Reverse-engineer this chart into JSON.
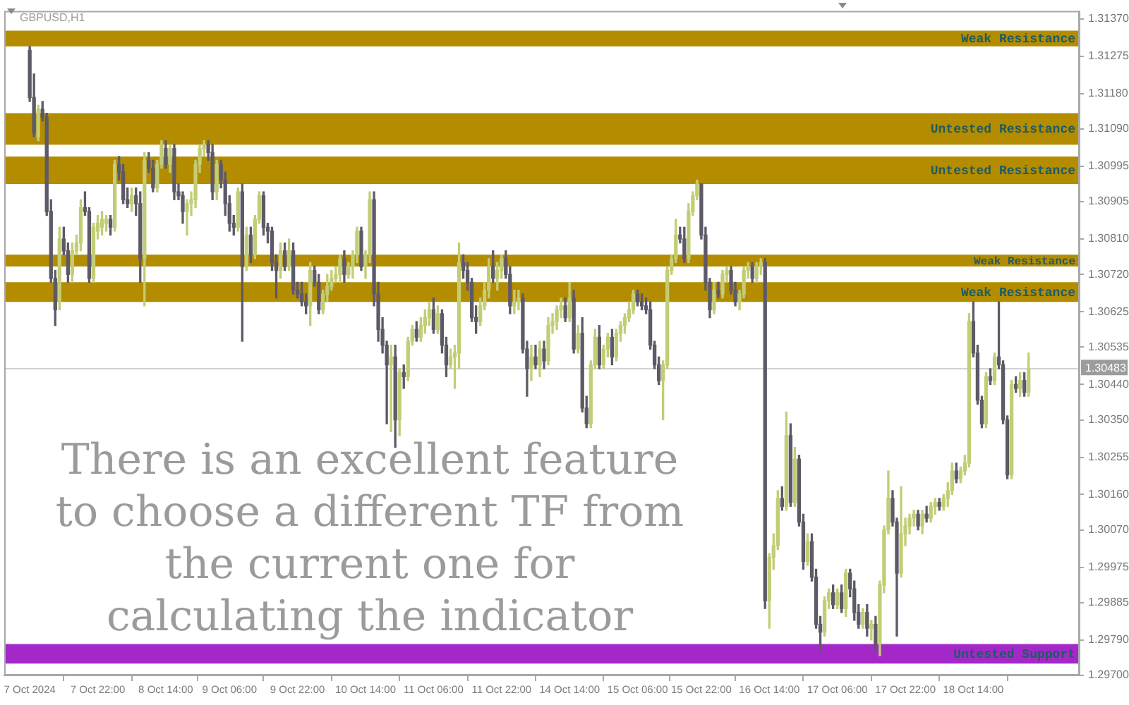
{
  "chart_data": {
    "type": "candlestick",
    "title": "GBPUSD,H1",
    "categories": [
      "7 Oct 2024",
      null,
      null,
      null,
      null,
      null,
      null,
      null,
      null,
      null,
      null,
      null,
      null,
      null,
      null,
      null,
      "7 Oct 22:00",
      null,
      null,
      null,
      null,
      null,
      null,
      null,
      null,
      null,
      null,
      null,
      null,
      null,
      null,
      null,
      "8 Oct 14:00",
      null,
      null,
      null,
      null,
      null,
      null,
      null,
      null,
      null,
      null,
      null,
      null,
      null,
      null,
      "9 Oct 06:00",
      null,
      null,
      null,
      null,
      null,
      null,
      null,
      null,
      null,
      null,
      null,
      null,
      null,
      null,
      null,
      "9 Oct 22:00",
      null,
      null,
      null,
      null,
      null,
      null,
      null,
      null,
      null,
      null,
      null,
      null,
      null,
      null,
      null,
      "10 Oct 14:00",
      null,
      null,
      null,
      null,
      null,
      null,
      null,
      null,
      null,
      null,
      null,
      null,
      null,
      null,
      null,
      "11 Oct 06:00",
      null,
      null,
      null,
      null,
      null,
      null,
      null,
      null,
      null,
      null,
      null,
      null,
      null,
      null,
      null,
      "11 Oct 22:00",
      null,
      null,
      null,
      null,
      null,
      null,
      null,
      null,
      null,
      null,
      null,
      null,
      null,
      null,
      null,
      "14 Oct 14:00",
      null,
      null,
      null,
      null,
      null,
      null,
      null,
      null,
      null,
      null,
      null,
      null,
      null,
      null,
      null,
      "15 Oct 06:00",
      null,
      null,
      null,
      null,
      null,
      null,
      null,
      null,
      null,
      null,
      null,
      null,
      null,
      null,
      "15 Oct 22:00",
      null,
      null,
      null,
      null,
      null,
      null,
      null,
      null,
      null,
      null,
      null,
      null,
      null,
      null,
      null,
      "16 Oct 14:00",
      null,
      null,
      null,
      null,
      null,
      null,
      null,
      null,
      null,
      null,
      null,
      null,
      null,
      null,
      null,
      "17 Oct 06:00",
      null,
      null,
      null,
      null,
      null,
      null,
      null,
      null,
      null,
      null,
      null,
      null,
      null,
      null,
      null,
      "17 Oct 22:00",
      null,
      null,
      null,
      null,
      null,
      null,
      null,
      null,
      null,
      null,
      null,
      null,
      null,
      null,
      null,
      "18 Oct 14:00",
      null,
      null,
      null,
      null,
      null,
      null,
      null,
      null,
      null,
      null,
      null,
      null,
      null
    ],
    "ohlc": [
      [
        1.3129,
        1.313,
        1.3116,
        1.3117
      ],
      [
        1.3117,
        1.3123,
        1.3107,
        1.3108
      ],
      [
        1.3107,
        1.3115,
        1.3106,
        1.3114
      ],
      [
        1.3114,
        1.3116,
        1.3111,
        1.3112
      ],
      [
        1.3112,
        1.3113,
        1.3087,
        1.3088
      ],
      [
        1.3088,
        1.3091,
        1.307,
        1.3071
      ],
      [
        1.3071,
        1.3073,
        1.3059,
        1.3063
      ],
      [
        1.3065,
        1.3084,
        1.3063,
        1.3081
      ],
      [
        1.3081,
        1.3084,
        1.3077,
        1.3078
      ],
      [
        1.3078,
        1.308,
        1.307,
        1.3072
      ],
      [
        1.3072,
        1.308,
        1.307,
        1.3078
      ],
      [
        1.3078,
        1.3082,
        1.3077,
        1.308
      ],
      [
        1.308,
        1.3091,
        1.3078,
        1.3089
      ],
      [
        1.3089,
        1.3093,
        1.3087,
        1.3088
      ],
      [
        1.3088,
        1.3089,
        1.307,
        1.3071
      ],
      [
        1.3071,
        1.3085,
        1.307,
        1.3084
      ],
      [
        1.3083,
        1.3087,
        1.3081,
        1.3085
      ],
      [
        1.3084,
        1.3088,
        1.3082,
        1.3086
      ],
      [
        1.3085,
        1.3087,
        1.3083,
        1.3086
      ],
      [
        1.3086,
        1.3087,
        1.3082,
        1.3084
      ],
      [
        1.3084,
        1.3101,
        1.3083,
        1.31
      ],
      [
        1.31,
        1.3102,
        1.3096,
        1.3098
      ],
      [
        1.3098,
        1.31,
        1.309,
        1.3091
      ],
      [
        1.3091,
        1.3094,
        1.3089,
        1.309
      ],
      [
        1.309,
        1.3094,
        1.3088,
        1.3092
      ],
      [
        1.3092,
        1.3094,
        1.3087,
        1.309
      ],
      [
        1.309,
        1.3093,
        1.307,
        1.3076
      ],
      [
        1.3076,
        1.3103,
        1.3064,
        1.3101
      ],
      [
        1.3101,
        1.3103,
        1.3098,
        1.3099
      ],
      [
        1.3099,
        1.3101,
        1.3093,
        1.3094
      ],
      [
        1.3094,
        1.3101,
        1.3093,
        1.31
      ],
      [
        1.31,
        1.3106,
        1.3099,
        1.3105
      ],
      [
        1.3104,
        1.3106,
        1.3099,
        1.31
      ],
      [
        1.31,
        1.3105,
        1.3098,
        1.3104
      ],
      [
        1.3104,
        1.3105,
        1.3091,
        1.3093
      ],
      [
        1.3093,
        1.3095,
        1.3091,
        1.3092
      ],
      [
        1.3092,
        1.3093,
        1.3085,
        1.3088
      ],
      [
        1.3088,
        1.3091,
        1.3082,
        1.309
      ],
      [
        1.309,
        1.3093,
        1.3087,
        1.3091
      ],
      [
        1.3091,
        1.3101,
        1.3089,
        1.31
      ],
      [
        1.31,
        1.3105,
        1.3098,
        1.3104
      ],
      [
        1.3104,
        1.3106,
        1.3102,
        1.3105
      ],
      [
        1.3105,
        1.3106,
        1.3101,
        1.3103
      ],
      [
        1.3103,
        1.3105,
        1.3091,
        1.3093
      ],
      [
        1.3093,
        1.3101,
        1.3091,
        1.31
      ],
      [
        1.31,
        1.3101,
        1.3094,
        1.3096
      ],
      [
        1.3096,
        1.3098,
        1.3087,
        1.309
      ],
      [
        1.309,
        1.3092,
        1.3083,
        1.3085
      ],
      [
        1.3085,
        1.3087,
        1.3082,
        1.3084
      ],
      [
        1.3084,
        1.3094,
        1.3083,
        1.3093
      ],
      [
        1.3093,
        1.3095,
        1.3055,
        1.3074
      ],
      [
        1.3074,
        1.3084,
        1.3073,
        1.3082
      ],
      [
        1.3082,
        1.3084,
        1.3075,
        1.3077
      ],
      [
        1.3077,
        1.3087,
        1.3076,
        1.3086
      ],
      [
        1.3086,
        1.3093,
        1.3085,
        1.3092
      ],
      [
        1.3092,
        1.3093,
        1.3082,
        1.3084
      ],
      [
        1.3084,
        1.3085,
        1.308,
        1.3083
      ],
      [
        1.3083,
        1.3084,
        1.3073,
        1.3075
      ],
      [
        1.3075,
        1.3077,
        1.3066,
        1.3073
      ],
      [
        1.3073,
        1.308,
        1.3071,
        1.3078
      ],
      [
        1.3078,
        1.308,
        1.3073,
        1.3074
      ],
      [
        1.3074,
        1.3081,
        1.3073,
        1.3078
      ],
      [
        1.3078,
        1.308,
        1.3067,
        1.3068
      ],
      [
        1.3068,
        1.307,
        1.3066,
        1.3067
      ],
      [
        1.3067,
        1.307,
        1.3064,
        1.3065
      ],
      [
        1.3065,
        1.3067,
        1.3062,
        1.3064
      ],
      [
        1.3064,
        1.3075,
        1.3059,
        1.3073
      ],
      [
        1.3073,
        1.3074,
        1.3069,
        1.307
      ],
      [
        1.307,
        1.3072,
        1.3062,
        1.3063
      ],
      [
        1.3063,
        1.3068,
        1.3062,
        1.3067
      ],
      [
        1.3067,
        1.3072,
        1.3065,
        1.3069
      ],
      [
        1.3069,
        1.3073,
        1.3068,
        1.3071
      ],
      [
        1.3071,
        1.3074,
        1.307,
        1.3072
      ],
      [
        1.3072,
        1.3077,
        1.307,
        1.3076
      ],
      [
        1.3076,
        1.3078,
        1.307,
        1.3072
      ],
      [
        1.3072,
        1.3075,
        1.3071,
        1.3074
      ],
      [
        1.3074,
        1.3078,
        1.3071,
        1.3077
      ],
      [
        1.3077,
        1.3084,
        1.3075,
        1.3083
      ],
      [
        1.3083,
        1.3084,
        1.3073,
        1.3074
      ],
      [
        1.3074,
        1.3078,
        1.3071,
        1.3077
      ],
      [
        1.3077,
        1.3093,
        1.3075,
        1.3091
      ],
      [
        1.3091,
        1.3093,
        1.3064,
        1.3067
      ],
      [
        1.3067,
        1.307,
        1.3055,
        1.3058
      ],
      [
        1.3058,
        1.3061,
        1.3052,
        1.3054
      ],
      [
        1.3054,
        1.3055,
        1.3034,
        1.3049
      ],
      [
        1.3049,
        1.3054,
        1.3032,
        1.3051
      ],
      [
        1.3051,
        1.3054,
        1.3028,
        1.3035
      ],
      [
        1.3035,
        1.3048,
        1.3031,
        1.3047
      ],
      [
        1.3047,
        1.3049,
        1.3043,
        1.3046
      ],
      [
        1.3046,
        1.3056,
        1.3045,
        1.3055
      ],
      [
        1.3055,
        1.3059,
        1.3054,
        1.3058
      ],
      [
        1.3058,
        1.306,
        1.3055,
        1.3056
      ],
      [
        1.3056,
        1.3061,
        1.3055,
        1.3059
      ],
      [
        1.3059,
        1.3063,
        1.3057,
        1.3061
      ],
      [
        1.3061,
        1.3065,
        1.3059,
        1.3063
      ],
      [
        1.3063,
        1.3066,
        1.3057,
        1.3058
      ],
      [
        1.3058,
        1.3064,
        1.3057,
        1.3062
      ],
      [
        1.3062,
        1.3063,
        1.3052,
        1.3054
      ],
      [
        1.3054,
        1.3056,
        1.3046,
        1.3049
      ],
      [
        1.3049,
        1.3053,
        1.3048,
        1.3051
      ],
      [
        1.3051,
        1.3054,
        1.3043,
        1.3052
      ],
      [
        1.3052,
        1.308,
        1.3048,
        1.3075
      ],
      [
        1.3075,
        1.3077,
        1.3071,
        1.3073
      ],
      [
        1.3073,
        1.3075,
        1.3068,
        1.307
      ],
      [
        1.307,
        1.3071,
        1.306,
        1.3061
      ],
      [
        1.3061,
        1.3064,
        1.3057,
        1.306
      ],
      [
        1.306,
        1.3066,
        1.3059,
        1.3064
      ],
      [
        1.3064,
        1.307,
        1.3063,
        1.3068
      ],
      [
        1.3068,
        1.3076,
        1.3066,
        1.3074
      ],
      [
        1.3074,
        1.3078,
        1.307,
        1.3071
      ],
      [
        1.3071,
        1.3075,
        1.3068,
        1.3073
      ],
      [
        1.3073,
        1.3077,
        1.3071,
        1.3076
      ],
      [
        1.3076,
        1.3078,
        1.3071,
        1.3072
      ],
      [
        1.3072,
        1.3074,
        1.3062,
        1.3064
      ],
      [
        1.3064,
        1.3068,
        1.3062,
        1.3065
      ],
      [
        1.3065,
        1.3068,
        1.3063,
        1.3066
      ],
      [
        1.3066,
        1.3067,
        1.3052,
        1.3053
      ],
      [
        1.3053,
        1.3055,
        1.3041,
        1.3048
      ],
      [
        1.3048,
        1.3054,
        1.3045,
        1.3051
      ],
      [
        1.3051,
        1.3054,
        1.3048,
        1.3049
      ],
      [
        1.3049,
        1.3055,
        1.3046,
        1.3053
      ],
      [
        1.3053,
        1.3055,
        1.3048,
        1.305
      ],
      [
        1.305,
        1.3061,
        1.3049,
        1.3059
      ],
      [
        1.3059,
        1.3062,
        1.3057,
        1.306
      ],
      [
        1.306,
        1.3064,
        1.3058,
        1.3063
      ],
      [
        1.3063,
        1.3066,
        1.3061,
        1.3064
      ],
      [
        1.3064,
        1.3066,
        1.306,
        1.3061
      ],
      [
        1.3061,
        1.307,
        1.306,
        1.3066
      ],
      [
        1.3066,
        1.3068,
        1.3052,
        1.3053
      ],
      [
        1.3053,
        1.3059,
        1.3052,
        1.3057
      ],
      [
        1.3057,
        1.3061,
        1.3037,
        1.3038
      ],
      [
        1.3038,
        1.3041,
        1.3033,
        1.3034
      ],
      [
        1.3034,
        1.305,
        1.3033,
        1.3049
      ],
      [
        1.3049,
        1.3058,
        1.3048,
        1.3056
      ],
      [
        1.3056,
        1.3059,
        1.3048,
        1.3049
      ],
      [
        1.3049,
        1.3054,
        1.3048,
        1.3053
      ],
      [
        1.3053,
        1.3057,
        1.3051,
        1.3056
      ],
      [
        1.3056,
        1.3058,
        1.3049,
        1.3051
      ],
      [
        1.3051,
        1.3058,
        1.305,
        1.3057
      ],
      [
        1.3057,
        1.306,
        1.3055,
        1.3059
      ],
      [
        1.3059,
        1.3062,
        1.3057,
        1.3061
      ],
      [
        1.3061,
        1.3065,
        1.306,
        1.3063
      ],
      [
        1.3063,
        1.3068,
        1.3062,
        1.3067
      ],
      [
        1.3067,
        1.3068,
        1.3064,
        1.3065
      ],
      [
        1.3065,
        1.3067,
        1.3063,
        1.3064
      ],
      [
        1.3064,
        1.3066,
        1.3062,
        1.3063
      ],
      [
        1.3063,
        1.3065,
        1.3053,
        1.3054
      ],
      [
        1.3054,
        1.3055,
        1.3048,
        1.3049
      ],
      [
        1.3049,
        1.3051,
        1.3044,
        1.3045
      ],
      [
        1.3045,
        1.305,
        1.3035,
        1.3049
      ],
      [
        1.3049,
        1.3074,
        1.3048,
        1.3073
      ],
      [
        1.3073,
        1.3077,
        1.3072,
        1.3076
      ],
      [
        1.3076,
        1.3086,
        1.3075,
        1.3082
      ],
      [
        1.3082,
        1.3084,
        1.308,
        1.3081
      ],
      [
        1.3081,
        1.3084,
        1.3075,
        1.3076
      ],
      [
        1.3076,
        1.309,
        1.3075,
        1.3088
      ],
      [
        1.3088,
        1.3093,
        1.3087,
        1.3092
      ],
      [
        1.3092,
        1.3096,
        1.3091,
        1.3095
      ],
      [
        1.3095,
        1.3095,
        1.3081,
        1.3082
      ],
      [
        1.3082,
        1.3084,
        1.3068,
        1.307
      ],
      [
        1.307,
        1.3071,
        1.3061,
        1.3063
      ],
      [
        1.3063,
        1.307,
        1.3062,
        1.3068
      ],
      [
        1.3068,
        1.307,
        1.3066,
        1.3067
      ],
      [
        1.3067,
        1.3073,
        1.3066,
        1.3072
      ],
      [
        1.3072,
        1.3074,
        1.307,
        1.3073
      ],
      [
        1.3073,
        1.3074,
        1.3067,
        1.3068
      ],
      [
        1.3068,
        1.307,
        1.3064,
        1.3065
      ],
      [
        1.3065,
        1.3068,
        1.3063,
        1.3067
      ],
      [
        1.3067,
        1.3074,
        1.3066,
        1.3073
      ],
      [
        1.3073,
        1.3075,
        1.3071,
        1.3074
      ],
      [
        1.3074,
        1.3075,
        1.307,
        1.3071
      ],
      [
        1.3071,
        1.3075,
        1.307,
        1.3074
      ],
      [
        1.3074,
        1.3076,
        1.3072,
        1.3075
      ],
      [
        1.3075,
        1.3076,
        1.2987,
        1.2989
      ],
      [
        1.2989,
        1.3001,
        1.2982,
        1.3
      ],
      [
        1.3,
        1.3006,
        1.2997,
        1.3003
      ],
      [
        1.3003,
        1.3017,
        1.3002,
        1.3015
      ],
      [
        1.3015,
        1.3018,
        1.3012,
        1.3013
      ],
      [
        1.3013,
        1.3037,
        1.3012,
        1.3031
      ],
      [
        1.3031,
        1.3034,
        1.3013,
        1.3014
      ],
      [
        1.3014,
        1.3028,
        1.3013,
        1.3025
      ],
      [
        1.3025,
        1.3026,
        1.3008,
        1.3009
      ],
      [
        1.3009,
        1.3011,
        1.2997,
        1.2999
      ],
      [
        1.2999,
        1.3006,
        1.2998,
        1.3004
      ],
      [
        1.3004,
        1.3006,
        1.2994,
        1.2995
      ],
      [
        1.2995,
        1.2997,
        1.2982,
        1.2983
      ],
      [
        1.2983,
        1.2985,
        1.2976,
        1.2981
      ],
      [
        1.2981,
        1.299,
        1.298,
        1.2989
      ],
      [
        1.2989,
        1.2992,
        1.2987,
        1.2991
      ],
      [
        1.2991,
        1.2993,
        1.2987,
        1.2988
      ],
      [
        1.2988,
        1.2992,
        1.2987,
        1.2991
      ],
      [
        1.2991,
        1.2993,
        1.2986,
        1.2987
      ],
      [
        1.2987,
        1.2997,
        1.2985,
        1.2996
      ],
      [
        1.2996,
        1.2997,
        1.299,
        1.2992
      ],
      [
        1.2992,
        1.2994,
        1.2984,
        1.2986
      ],
      [
        1.2986,
        1.2988,
        1.2982,
        1.2983
      ],
      [
        1.2983,
        1.2987,
        1.2982,
        1.2986
      ],
      [
        1.2986,
        1.2988,
        1.298,
        1.2982
      ],
      [
        1.2982,
        1.2984,
        1.2979,
        1.2983
      ],
      [
        1.2983,
        1.2985,
        1.2976,
        1.2978
      ],
      [
        1.2978,
        1.2994,
        1.2975,
        1.2993
      ],
      [
        1.2993,
        1.3008,
        1.2991,
        1.3007
      ],
      [
        1.3007,
        1.3022,
        1.3006,
        1.3015
      ],
      [
        1.3015,
        1.3017,
        1.3008,
        1.3009
      ],
      [
        1.3009,
        1.301,
        1.298,
        1.2996
      ],
      [
        1.2996,
        1.3018,
        1.2995,
        1.3006
      ],
      [
        1.3006,
        1.301,
        1.3003,
        1.3008
      ],
      [
        1.3008,
        1.3011,
        1.3006,
        1.301
      ],
      [
        1.301,
        1.3012,
        1.3008,
        1.3011
      ],
      [
        1.3011,
        1.3012,
        1.3007,
        1.3008
      ],
      [
        1.3008,
        1.3012,
        1.3006,
        1.3011
      ],
      [
        1.3011,
        1.3013,
        1.3009,
        1.301
      ],
      [
        1.301,
        1.3014,
        1.3009,
        1.3013
      ],
      [
        1.3013,
        1.3015,
        1.3011,
        1.3014
      ],
      [
        1.3014,
        1.3015,
        1.3012,
        1.3013
      ],
      [
        1.3013,
        1.3016,
        1.3012,
        1.3015
      ],
      [
        1.3015,
        1.3019,
        1.3013,
        1.3017
      ],
      [
        1.3017,
        1.3024,
        1.3016,
        1.3022
      ],
      [
        1.3022,
        1.3024,
        1.3019,
        1.302
      ],
      [
        1.302,
        1.3023,
        1.3019,
        1.3022
      ],
      [
        1.3022,
        1.3026,
        1.3021,
        1.3024
      ],
      [
        1.3024,
        1.3062,
        1.3023,
        1.306
      ],
      [
        1.306,
        1.3065,
        1.3051,
        1.3052
      ],
      [
        1.3052,
        1.3054,
        1.3039,
        1.304
      ],
      [
        1.304,
        1.3041,
        1.3033,
        1.3034
      ],
      [
        1.3034,
        1.3047,
        1.3033,
        1.3046
      ],
      [
        1.3046,
        1.3048,
        1.3044,
        1.3045
      ],
      [
        1.3045,
        1.3052,
        1.3044,
        1.3051
      ],
      [
        1.3051,
        1.3065,
        1.3048,
        1.3049
      ],
      [
        1.3049,
        1.305,
        1.3034,
        1.3035
      ],
      [
        1.3035,
        1.3036,
        1.302,
        1.3021
      ],
      [
        1.3021,
        1.3045,
        1.302,
        1.3044
      ],
      [
        1.3044,
        1.3046,
        1.3042,
        1.3043
      ],
      [
        1.3043,
        1.3047,
        1.3041,
        1.3045
      ],
      [
        1.3045,
        1.3047,
        1.3041,
        1.3042
      ],
      [
        1.3042,
        1.3052,
        1.3041,
        1.3048
      ]
    ],
    "colors": [
      "#5e5966",
      "#5e5966",
      "#c3cd75",
      "#5e5966",
      "#5e5966",
      "#5e5966",
      "#5e5966",
      "#c3cd75",
      "#5e5966",
      "#5e5966",
      "#c3cd75",
      "#c3cd75",
      "#c3cd75",
      "#5e5966",
      "#5e5966",
      "#c3cd75",
      "#c3cd75",
      "#c3cd75",
      "#c3cd75",
      "#5e5966",
      "#c3cd75",
      "#5e5966",
      "#5e5966",
      "#5e5966",
      "#c3cd75",
      "#5e5966",
      "#5e5966",
      "#c3cd75",
      "#5e5966",
      "#5e5966",
      "#c3cd75",
      "#c3cd75",
      "#5e5966",
      "#c3cd75",
      "#5e5966",
      "#5e5966",
      "#5e5966",
      "#c3cd75",
      "#c3cd75",
      "#c3cd75",
      "#c3cd75",
      "#c3cd75",
      "#5e5966",
      "#5e5966",
      "#c3cd75",
      "#5e5966",
      "#5e5966",
      "#5e5966",
      "#5e5966",
      "#c3cd75",
      "#5e5966",
      "#c3cd75",
      "#5e5966",
      "#c3cd75",
      "#c3cd75",
      "#5e5966",
      "#5e5966",
      "#5e5966",
      "#5e5966",
      "#c3cd75",
      "#5e5966",
      "#c3cd75",
      "#5e5966",
      "#5e5966",
      "#5e5966",
      "#5e5966",
      "#c3cd75",
      "#5e5966",
      "#5e5966",
      "#c3cd75",
      "#c3cd75",
      "#c3cd75",
      "#c3cd75",
      "#c3cd75",
      "#5e5966",
      "#c3cd75",
      "#c3cd75",
      "#c3cd75",
      "#5e5966",
      "#c3cd75",
      "#c3cd75",
      "#5e5966",
      "#5e5966",
      "#5e5966",
      "#5e5966",
      "#c3cd75",
      "#5e5966",
      "#c3cd75",
      "#5e5966",
      "#c3cd75",
      "#c3cd75",
      "#5e5966",
      "#c3cd75",
      "#c3cd75",
      "#c3cd75",
      "#5e5966",
      "#c3cd75",
      "#5e5966",
      "#5e5966",
      "#c3cd75",
      "#c3cd75",
      "#c3cd75",
      "#5e5966",
      "#5e5966",
      "#5e5966",
      "#5e5966",
      "#c3cd75",
      "#c3cd75",
      "#c3cd75",
      "#5e5966",
      "#c3cd75",
      "#c3cd75",
      "#5e5966",
      "#5e5966",
      "#c3cd75",
      "#c3cd75",
      "#5e5966",
      "#5e5966",
      "#c3cd75",
      "#5e5966",
      "#c3cd75",
      "#5e5966",
      "#c3cd75",
      "#c3cd75",
      "#c3cd75",
      "#c3cd75",
      "#5e5966",
      "#c3cd75",
      "#5e5966",
      "#c3cd75",
      "#5e5966",
      "#5e5966",
      "#c3cd75",
      "#c3cd75",
      "#5e5966",
      "#c3cd75",
      "#c3cd75",
      "#5e5966",
      "#c3cd75",
      "#c3cd75",
      "#c3cd75",
      "#c3cd75",
      "#c3cd75",
      "#5e5966",
      "#5e5966",
      "#5e5966",
      "#5e5966",
      "#5e5966",
      "#5e5966",
      "#c3cd75",
      "#c3cd75",
      "#c3cd75",
      "#c3cd75",
      "#5e5966",
      "#5e5966",
      "#c3cd75",
      "#c3cd75",
      "#c3cd75",
      "#5e5966",
      "#5e5966",
      "#5e5966",
      "#c3cd75",
      "#5e5966",
      "#c3cd75",
      "#c3cd75",
      "#5e5966",
      "#5e5966",
      "#c3cd75",
      "#c3cd75",
      "#c3cd75",
      "#5e5966",
      "#c3cd75",
      "#c3cd75",
      "#5e5966",
      "#c3cd75",
      "#c3cd75",
      "#c3cd75",
      "#5e5966",
      "#c3cd75",
      "#5e5966",
      "#c3cd75",
      "#5e5966",
      "#5e5966",
      "#c3cd75",
      "#5e5966",
      "#5e5966",
      "#5e5966",
      "#c3cd75",
      "#c3cd75",
      "#5e5966",
      "#c3cd75",
      "#5e5966",
      "#c3cd75",
      "#5e5966",
      "#5e5966",
      "#5e5966",
      "#c3cd75",
      "#5e5966",
      "#c3cd75",
      "#5e5966",
      "#c3cd75",
      "#c3cd75",
      "#c3cd75",
      "#5e5966",
      "#5e5966",
      "#c3cd75",
      "#c3cd75",
      "#c3cd75",
      "#c3cd75",
      "#5e5966",
      "#c3cd75",
      "#5e5966",
      "#c3cd75",
      "#c3cd75",
      "#5e5966",
      "#c3cd75",
      "#c3cd75",
      "#c3cd75",
      "#5e5966",
      "#c3cd75",
      "#c3cd75",
      "#c3cd75",
      "#5e5966",
      "#5e5966",
      "#5e5966",
      "#c3cd75",
      "#5e5966",
      "#c3cd75",
      "#5e5966",
      "#5e5966",
      "#5e5966",
      "#c3cd75",
      "#5e5966",
      "#c3cd75",
      "#5e5966",
      "#c3cd75"
    ],
    "ylim": [
      1.297,
      1.3139
    ],
    "yticks": [
      {
        "value": 1.3137,
        "label": "1.31370"
      },
      1.31275,
      {
        "value": 1.3118,
        "label": "1.31180"
      },
      {
        "value": 1.3109,
        "label": "1.31090"
      },
      1.30995,
      1.30905,
      {
        "value": 1.3081,
        "label": "1.30810"
      },
      {
        "value": 1.3072,
        "label": "1.30720"
      },
      1.30625,
      1.30535,
      {
        "value": 1.3044,
        "label": "1.30440"
      },
      {
        "value": 1.3035,
        "label": "1.30350"
      },
      1.30255,
      {
        "value": 1.3016,
        "label": "1.30160"
      },
      {
        "value": 1.3007,
        "label": "1.30070"
      },
      1.29975,
      1.29885,
      {
        "value": 1.2979,
        "label": "1.29790"
      },
      {
        "value": 1.297,
        "label": "1.29700"
      }
    ],
    "bands": [
      {
        "axis": "y",
        "from": 1.313,
        "to": 1.3134,
        "label": "Weak Resistance",
        "color": "#b48c00"
      },
      {
        "axis": "y",
        "from": 1.3105,
        "to": 1.3113,
        "label": "Untested Resistance",
        "color": "#b48c00"
      },
      {
        "axis": "y",
        "from": 1.3095,
        "to": 1.3102,
        "label": "Untested Resistance",
        "color": "#b48c00"
      },
      {
        "axis": "y",
        "from": 1.3074,
        "to": 1.3077,
        "label": "Weak Resistance",
        "color": "#b48c00"
      },
      {
        "axis": "y",
        "from": 1.3065,
        "to": 1.307,
        "label": "Weak Resistance",
        "color": "#b48c00"
      },
      {
        "axis": "y",
        "from": 1.2973,
        "to": 1.2978,
        "label": "Untested Support",
        "color": "#a428c8"
      }
    ],
    "ref_lines": [
      {
        "axis": "y",
        "value": 1.30483,
        "label": "1.30483",
        "color": "#d2d2d2"
      }
    ],
    "annotations": [
      "There is an excellent feature to choose a different TF from the current one for calculating the indicator"
    ]
  }
}
